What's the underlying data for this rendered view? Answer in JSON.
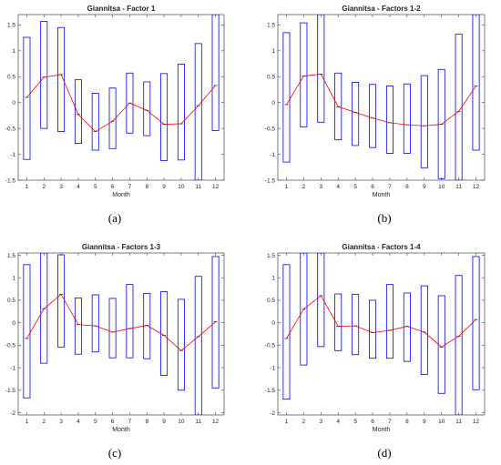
{
  "chart_data": [
    {
      "type": "boxplot-line",
      "caption": "(a)",
      "title": "Giannitsa - Factor 1",
      "xlabel": "Month",
      "ylabel": "",
      "ylim": [
        -1.5,
        1.7
      ],
      "yticks": [
        -1.5,
        -1,
        -0.5,
        0,
        0.5,
        1,
        1.5
      ],
      "ytick_labels": [
        "-1.5",
        "-1",
        "-0.5",
        "0",
        "0.5",
        "1",
        "1.5"
      ],
      "categories": [
        "1",
        "2",
        "3",
        "4",
        "5",
        "6",
        "7",
        "8",
        "9",
        "10",
        "11",
        "12"
      ],
      "series": [
        {
          "color": "#ff0000",
          "values": [
            0.1,
            0.49,
            0.54,
            -0.23,
            -0.56,
            -0.36,
            -0.01,
            -0.15,
            -0.42,
            -0.41,
            -0.06,
            0.33
          ]
        }
      ],
      "boxes": [
        [
          -1.1,
          1.26
        ],
        [
          -0.5,
          1.57
        ],
        [
          -0.56,
          1.45
        ],
        [
          -0.79,
          0.44
        ],
        [
          -0.92,
          0.18
        ],
        [
          -0.89,
          0.28
        ],
        [
          -0.59,
          0.57
        ],
        [
          -0.64,
          0.4
        ],
        [
          -1.12,
          0.56
        ],
        [
          -1.11,
          0.74
        ],
        [
          -1.5,
          1.14
        ],
        [
          -0.54,
          1.7
        ]
      ],
      "box_color": "#0000ff",
      "grid": false
    },
    {
      "type": "boxplot-line",
      "caption": "(b)",
      "title": "Giannitsa - Factors 1-2",
      "xlabel": "Month",
      "ylabel": "",
      "ylim": [
        -1.5,
        1.7
      ],
      "yticks": [
        -1.5,
        -1,
        -0.5,
        0,
        0.5,
        1,
        1.5
      ],
      "ytick_labels": [
        "-1.5",
        "-1",
        "-0.5",
        "0",
        "0.5",
        "1",
        "1.5"
      ],
      "categories": [
        "1",
        "2",
        "3",
        "4",
        "5",
        "6",
        "7",
        "8",
        "9",
        "10",
        "11",
        "12"
      ],
      "series": [
        {
          "color": "#ff0000",
          "values": [
            -0.04,
            0.51,
            0.55,
            -0.08,
            -0.19,
            -0.3,
            -0.39,
            -0.43,
            -0.45,
            -0.42,
            -0.17,
            0.32
          ]
        }
      ],
      "boxes": [
        [
          -1.15,
          1.35
        ],
        [
          -0.47,
          1.54
        ],
        [
          -0.38,
          1.7
        ],
        [
          -0.72,
          0.57
        ],
        [
          -0.83,
          0.39
        ],
        [
          -0.87,
          0.35
        ],
        [
          -0.98,
          0.32
        ],
        [
          -0.98,
          0.36
        ],
        [
          -1.26,
          0.52
        ],
        [
          -1.47,
          0.64
        ],
        [
          -1.5,
          1.32
        ],
        [
          -0.92,
          1.7
        ]
      ],
      "box_color": "#0000ff",
      "grid": false
    },
    {
      "type": "boxplot-line",
      "caption": "(c)",
      "title": "Giannitsa - Factors 1-3",
      "xlabel": "Month",
      "ylabel": "",
      "ylim": [
        -2.05,
        1.55
      ],
      "yticks": [
        -2,
        -1.5,
        -1,
        -0.5,
        0,
        0.5,
        1,
        1.5
      ],
      "ytick_labels": [
        "-2",
        "-1.5",
        "-1",
        "-0.5",
        "0",
        "0.5",
        "1",
        "1.5"
      ],
      "categories": [
        "1",
        "2",
        "3",
        "4",
        "5",
        "6",
        "7",
        "8",
        "9",
        "10",
        "11",
        "12"
      ],
      "series": [
        {
          "color": "#ff0000",
          "values": [
            -0.35,
            0.31,
            0.63,
            -0.04,
            -0.07,
            -0.21,
            -0.13,
            -0.06,
            -0.28,
            -0.62,
            -0.31,
            0.02
          ]
        }
      ],
      "boxes": [
        [
          -1.67,
          1.29
        ],
        [
          -0.9,
          1.55
        ],
        [
          -0.54,
          1.51
        ],
        [
          -0.7,
          0.55
        ],
        [
          -0.65,
          0.62
        ],
        [
          -0.78,
          0.54
        ],
        [
          -0.78,
          0.85
        ],
        [
          -0.8,
          0.65
        ],
        [
          -1.17,
          0.69
        ],
        [
          -1.5,
          0.52
        ],
        [
          -2.05,
          1.03
        ],
        [
          -1.45,
          1.47
        ]
      ],
      "box_color": "#0000ff",
      "grid": false
    },
    {
      "type": "boxplot-line",
      "caption": "(d)",
      "title": "Giannitsa - Factors 1-4",
      "xlabel": "Month",
      "ylabel": "",
      "ylim": [
        -2.05,
        1.55
      ],
      "yticks": [
        -2,
        -1.5,
        -1,
        -0.5,
        0,
        0.5,
        1,
        1.5
      ],
      "ytick_labels": [
        "-2",
        "-1.5",
        "-1",
        "-0.5",
        "0",
        "0.5",
        "1",
        "1.5"
      ],
      "categories": [
        "1",
        "2",
        "3",
        "4",
        "5",
        "6",
        "7",
        "8",
        "9",
        "10",
        "11",
        "12"
      ],
      "series": [
        {
          "color": "#ff0000",
          "values": [
            -0.35,
            0.3,
            0.6,
            -0.08,
            -0.07,
            -0.22,
            -0.17,
            -0.08,
            -0.21,
            -0.54,
            -0.3,
            0.07
          ]
        }
      ],
      "boxes": [
        [
          -1.7,
          1.29
        ],
        [
          -0.94,
          1.55
        ],
        [
          -0.53,
          1.55
        ],
        [
          -0.62,
          0.64
        ],
        [
          -0.71,
          0.63
        ],
        [
          -0.79,
          0.5
        ],
        [
          -0.79,
          0.85
        ],
        [
          -0.86,
          0.66
        ],
        [
          -1.15,
          0.82
        ],
        [
          -1.57,
          0.6
        ],
        [
          -2.05,
          1.05
        ],
        [
          -1.49,
          1.47
        ]
      ],
      "box_color": "#0000ff",
      "grid": false
    }
  ]
}
